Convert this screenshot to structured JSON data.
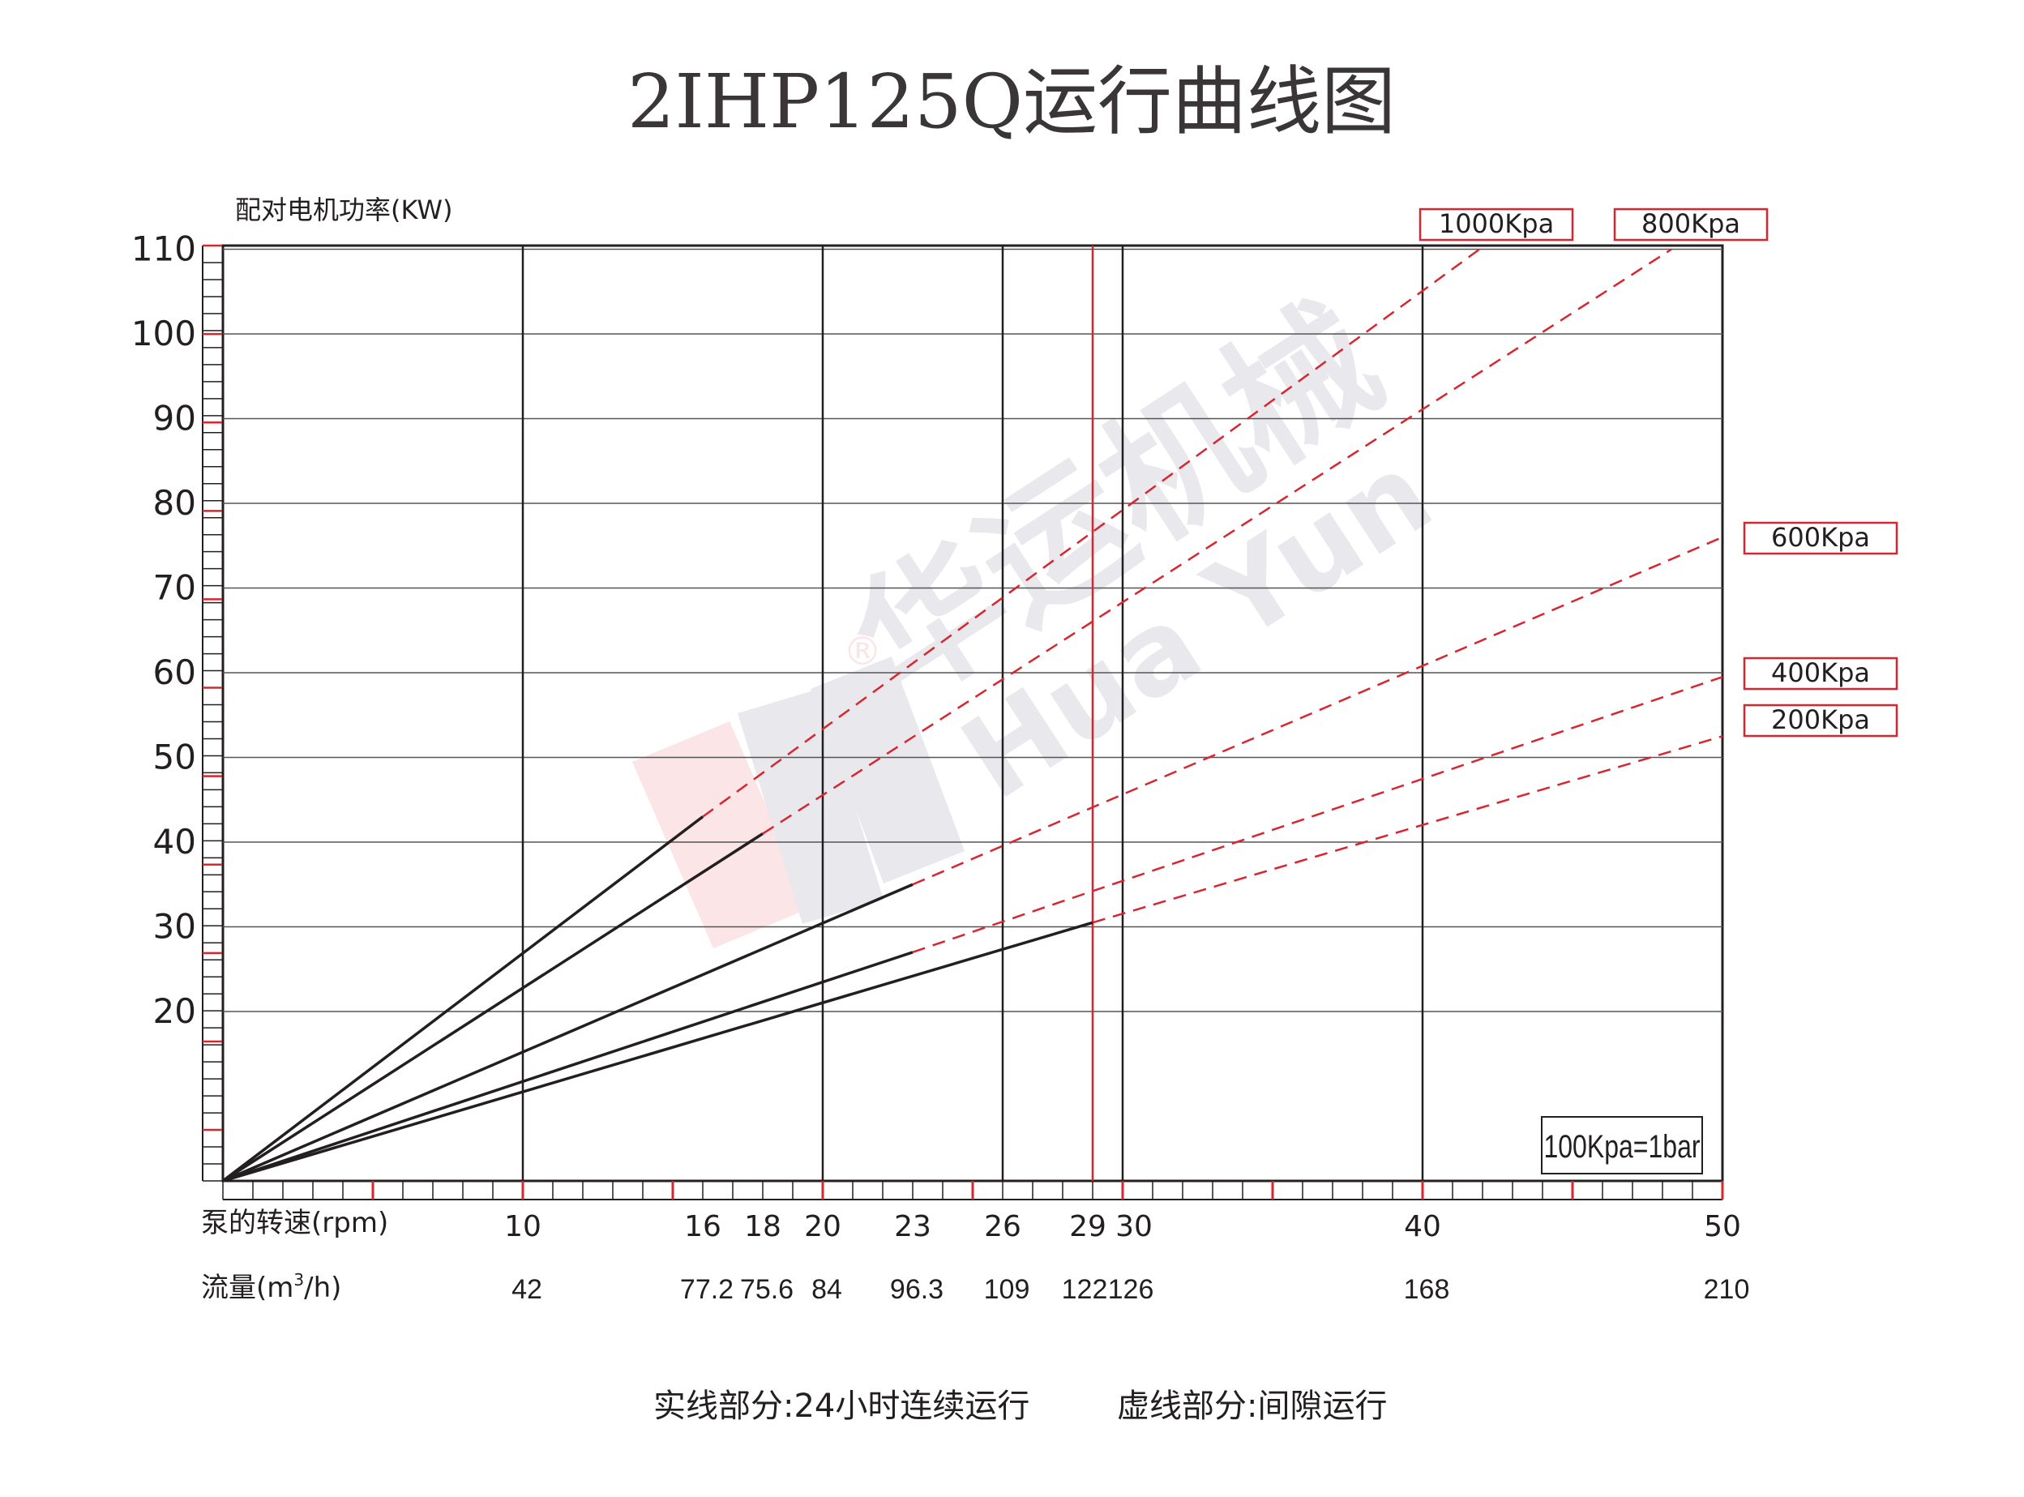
{
  "chart_data": {
    "type": "line",
    "title": "2IHP125Q运行曲线图",
    "ylabel": "配对电机功率(KW)",
    "xlabel": "泵的转速(rpm)",
    "flow_label_prefix": "流量(m",
    "flow_label_sup": "3",
    "flow_label_suffix": "/h)",
    "ylim": [
      0,
      110
    ],
    "xlim": [
      0,
      50
    ],
    "y_ticks": [
      20,
      30,
      40,
      50,
      60,
      70,
      80,
      90,
      100,
      110
    ],
    "x_gridlines": [
      10,
      20,
      26,
      30,
      40
    ],
    "x_ticks": [
      {
        "x": 10,
        "label": "10",
        "flow": "42"
      },
      {
        "x": 16,
        "label": "16",
        "flow": "77.2"
      },
      {
        "x": 18,
        "label": "18",
        "flow": "75.6"
      },
      {
        "x": 20,
        "label": "20",
        "flow": "84"
      },
      {
        "x": 23,
        "label": "23",
        "flow": "96.3"
      },
      {
        "x": 26,
        "label": "26",
        "flow": "109"
      },
      {
        "x": 29,
        "label": "29",
        "flow": "122"
      },
      {
        "x": 30,
        "label": "30",
        "flow": "126"
      },
      {
        "x": 40,
        "label": "40",
        "flow": "168"
      },
      {
        "x": 50,
        "label": "50",
        "flow": "210"
      }
    ],
    "red_marker_x": 29,
    "series": [
      {
        "name": "1000Kpa",
        "solid": [
          [
            0,
            0
          ],
          [
            16,
            43
          ]
        ],
        "dashed": [
          [
            16,
            43
          ],
          [
            41.9,
            110
          ]
        ]
      },
      {
        "name": "800Kpa",
        "solid": [
          [
            0,
            0
          ],
          [
            18,
            41
          ]
        ],
        "dashed": [
          [
            18,
            41
          ],
          [
            48.3,
            110
          ]
        ]
      },
      {
        "name": "600Kpa",
        "solid": [
          [
            0,
            0
          ],
          [
            23,
            35
          ]
        ],
        "dashed": [
          [
            23,
            35
          ],
          [
            50,
            76
          ]
        ]
      },
      {
        "name": "400Kpa",
        "solid": [
          [
            0,
            0
          ],
          [
            23,
            27
          ]
        ],
        "dashed": [
          [
            23,
            27
          ],
          [
            50,
            59.5
          ]
        ]
      },
      {
        "name": "200Kpa",
        "solid": [
          [
            0,
            0
          ],
          [
            29,
            30.5
          ]
        ],
        "dashed": [
          [
            29,
            30.5
          ],
          [
            50,
            52.5
          ]
        ]
      }
    ],
    "unit_note": "100Kpa=1bar",
    "footer_solid": "实线部分:24小时连续运行",
    "footer_dashed": "虚线部分:间隙运行",
    "colors": {
      "axis": "#231f20",
      "red": "#d7262f",
      "grid": "#555555",
      "title": "#3a3536"
    }
  },
  "watermark": {
    "cn": "华运机械",
    "en": "Hua Yun",
    "mark": "®"
  }
}
